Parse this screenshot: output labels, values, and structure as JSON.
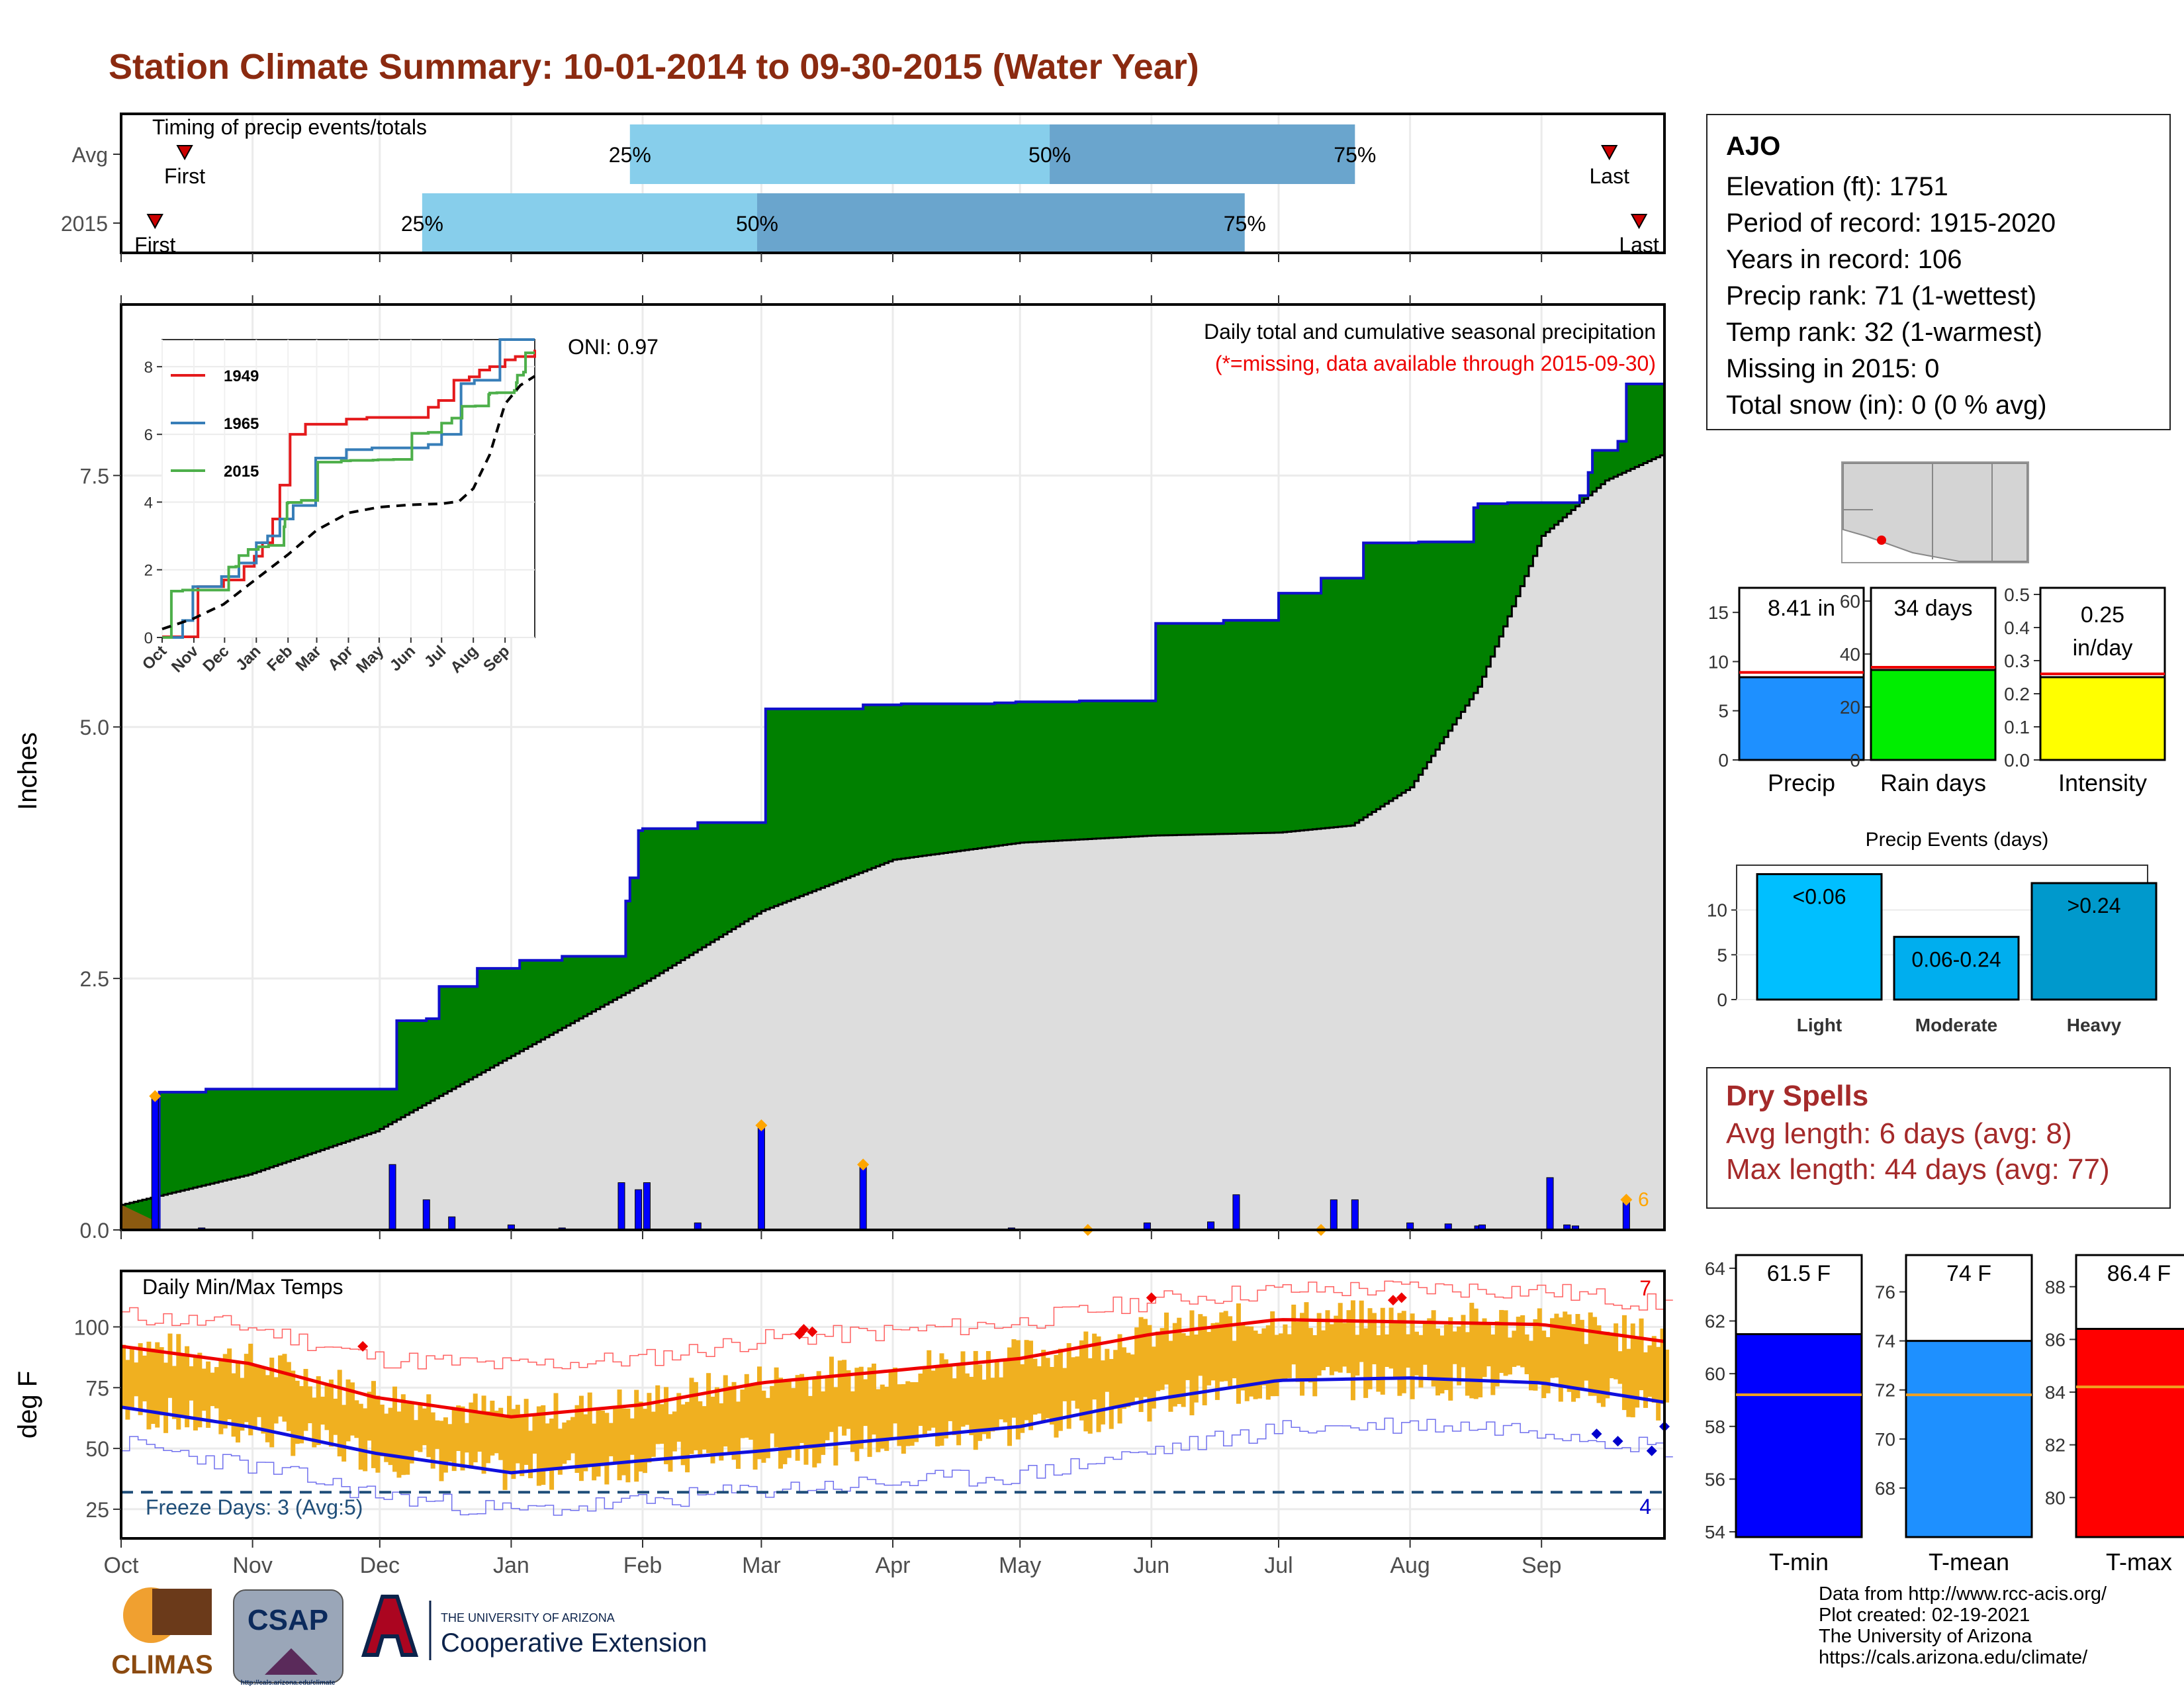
{
  "page": {
    "title": "Station Climate Summary: 10-01-2014 to 09-30-2015 (Water Year)"
  },
  "timing": {
    "title": "Timing of precip events/totals",
    "rows": [
      {
        "label": "Avg",
        "first_label": "First",
        "last_label": "Last",
        "first_day": 15,
        "last_day": 351,
        "p25": 120,
        "p50": 219,
        "p75": 291,
        "p25_label": "25%",
        "p50_label": "50%",
        "p75_label": "75%"
      },
      {
        "label": "2015",
        "first_label": "First",
        "last_label": "Last",
        "first_day": 8,
        "last_day": 358,
        "p25": 71,
        "p50": 150,
        "p75": 265,
        "p25_label": "25%",
        "p50_label": "50%",
        "p75_label": "75%"
      }
    ],
    "colors": {
      "early": "#87ceeb",
      "late": "#6aa5cd",
      "marker": "#cc0000"
    }
  },
  "month_labels": [
    "Oct",
    "Nov",
    "Dec",
    "Jan",
    "Feb",
    "Mar",
    "Apr",
    "May",
    "Jun",
    "Jul",
    "Aug",
    "Sep"
  ],
  "month_starts": [
    0,
    31,
    61,
    92,
    123,
    151,
    182,
    212,
    243,
    273,
    304,
    335
  ],
  "precip_panel": {
    "ylabel": "Inches",
    "title_line1": "Daily total and cumulative seasonal precipitation",
    "title_line2": "(*=missing, data available through 2015-09-30)",
    "oni": "ONI: 0.97",
    "heavy_count_label": "6",
    "colors": {
      "above": "#008000",
      "below": "#dddddd",
      "line": "#1010cc",
      "marker": "#ffa500"
    }
  },
  "chart_data": [
    {
      "type": "area",
      "title": "Daily total and cumulative seasonal precipitation",
      "ylabel": "Inches",
      "ylim": [
        0,
        9.2
      ],
      "yticks": [
        0.0,
        2.5,
        5.0,
        7.5
      ],
      "ytick_labels": [
        "0.0",
        "2.5",
        "5.0",
        "7.5"
      ],
      "x_units": "day of water year (0 = Oct 1)",
      "series": [
        {
          "name": "2015 cumulative",
          "x": [
            0,
            8,
            9,
            20,
            64,
            65,
            72,
            75,
            84,
            94,
            104,
            119,
            120,
            122,
            123,
            136,
            151,
            152,
            175,
            184,
            206,
            211,
            226,
            228,
            244,
            260,
            263,
            273,
            283,
            293,
            306,
            319,
            320,
            327,
            344,
            346,
            347,
            353,
            355,
            364
          ],
          "values": [
            0,
            0,
            1.37,
            1.4,
            1.4,
            2.08,
            2.1,
            2.42,
            2.6,
            2.68,
            2.72,
            3.27,
            3.5,
            3.97,
            3.99,
            4.05,
            4.05,
            5.18,
            5.22,
            5.23,
            5.24,
            5.25,
            5.26,
            5.26,
            6.03,
            6.06,
            6.06,
            6.33,
            6.48,
            6.83,
            6.84,
            7.18,
            7.22,
            7.23,
            7.3,
            7.53,
            7.75,
            7.84,
            8.41,
            8.41
          ]
        },
        {
          "name": "Average cumulative",
          "x": [
            0,
            30,
            60,
            92,
            123,
            151,
            182,
            212,
            243,
            273,
            290,
            304,
            320,
            335,
            350,
            364
          ],
          "values": [
            0.25,
            0.55,
            0.98,
            1.73,
            2.45,
            3.17,
            3.68,
            3.85,
            3.92,
            3.95,
            4.02,
            4.4,
            5.4,
            6.9,
            7.45,
            7.72
          ]
        }
      ],
      "daily": {
        "x": [
          8,
          19,
          64,
          72,
          78,
          92,
          104,
          118,
          122,
          124,
          136,
          151,
          175,
          210,
          230,
          242,
          257,
          263,
          286,
          291,
          304,
          313,
          320,
          321,
          337,
          341,
          343,
          355
        ],
        "values": [
          1.33,
          0.02,
          0.65,
          0.3,
          0.13,
          0.05,
          0.02,
          0.47,
          0.4,
          0.47,
          0.07,
          1.04,
          0.65,
          0.02,
          0.01,
          0.07,
          0.08,
          0.35,
          0.3,
          0.3,
          0.07,
          0.06,
          0.04,
          0.05,
          0.52,
          0.05,
          0.04,
          0.3
        ]
      },
      "markers_x": [
        8,
        151,
        175,
        228,
        283,
        355
      ]
    },
    {
      "type": "line",
      "title": "Daily Min/Max Temps",
      "ylabel": "deg F",
      "ylim": [
        13,
        123
      ],
      "yticks": [
        25,
        50,
        75,
        100
      ],
      "ytick_labels": [
        "25",
        "50",
        "75",
        "100"
      ],
      "series": [
        {
          "name": "Avg max",
          "x": [
            0,
            30,
            60,
            92,
            123,
            151,
            182,
            212,
            243,
            273,
            304,
            335,
            364
          ],
          "values": [
            92,
            85,
            71,
            63,
            68,
            77,
            82,
            87,
            97,
            103,
            102,
            101,
            94
          ]
        },
        {
          "name": "Avg min",
          "x": [
            0,
            30,
            60,
            92,
            123,
            151,
            182,
            212,
            243,
            273,
            304,
            335,
            364
          ],
          "values": [
            67,
            59,
            48,
            40,
            45,
            49,
            54,
            59,
            70,
            78,
            79,
            77,
            69
          ]
        },
        {
          "name": "Record max",
          "x": [
            0,
            30,
            60,
            92,
            123,
            151,
            182,
            212,
            243,
            273,
            304,
            335,
            364
          ],
          "values": [
            105,
            100,
            87,
            84,
            87,
            95,
            98,
            102,
            111,
            115,
            116,
            115,
            109
          ]
        },
        {
          "name": "Record min",
          "x": [
            0,
            30,
            60,
            92,
            123,
            151,
            182,
            212,
            243,
            273,
            304,
            335,
            364
          ],
          "values": [
            52,
            43,
            31,
            24,
            28,
            33,
            36,
            39,
            49,
            58,
            60,
            58,
            50
          ]
        }
      ],
      "freeze_line": 32,
      "freeze_label": "Freeze Days: 3 (Avg:5)",
      "record_high_count": "7",
      "record_low_count": "4"
    }
  ],
  "temp_panel": {
    "title": "Daily Min/Max Temps",
    "ylabel": "deg F",
    "colors": {
      "bars": "#f0b020",
      "max": "#ee0000",
      "min": "#1010dd",
      "freeze": "#1f4e79"
    }
  },
  "inset": {
    "legend": [
      "1949",
      "1965",
      "2015"
    ],
    "legend_colors": [
      "#e41a1c",
      "#377eb8",
      "#4daf4a"
    ],
    "yticks": [
      "0",
      "2",
      "4",
      "6",
      "8"
    ],
    "months": [
      "Oct",
      "Nov",
      "Dec",
      "Jan",
      "Feb",
      "Mar",
      "Apr",
      "May",
      "Jun",
      "Jul",
      "Aug",
      "Sep"
    ]
  },
  "station": {
    "name": "AJO",
    "lines": [
      "Elevation (ft): 1751",
      "Period of record: 1915-2020",
      "Years in record: 106",
      "Precip rank: 71 (1-wettest)",
      "Temp rank: 32 (1-warmest)",
      "Missing in 2015: 0",
      "Total snow (in): 0 (0 % avg)"
    ]
  },
  "summary_bars": [
    {
      "label": "Precip",
      "value_label": "8.41 in",
      "value": 8.41,
      "avg": 8.9,
      "ymax": 17.5,
      "ticks": [
        "0",
        "5",
        "10",
        "15"
      ],
      "tick_values": [
        0,
        5,
        10,
        15
      ],
      "color": "#1e90ff"
    },
    {
      "label": "Rain days",
      "value_label": "34 days",
      "value": 34,
      "avg": 35,
      "ymax": 65,
      "ticks": [
        "0",
        "20",
        "40",
        "60"
      ],
      "tick_values": [
        0,
        20,
        40,
        60
      ],
      "color": "#00ee00"
    },
    {
      "label": "Intensity",
      "value_label": "0.25 in/day",
      "value": 0.25,
      "avg": 0.26,
      "ymax": 0.52,
      "ticks": [
        "0.0",
        "0.1",
        "0.2",
        "0.3",
        "0.4",
        "0.5"
      ],
      "tick_values": [
        0,
        0.1,
        0.2,
        0.3,
        0.4,
        0.5
      ],
      "color": "#ffff00"
    }
  ],
  "precip_events": {
    "title": "Precip Events (days)",
    "categories": [
      "Light",
      "Moderate",
      "Heavy"
    ],
    "bar_labels": [
      "<0.06",
      "0.06-0.24",
      ">0.24"
    ],
    "values": [
      14,
      7,
      13
    ],
    "ymax": 15,
    "ticks": [
      "0",
      "5",
      "10"
    ],
    "colors": [
      "#00bfff",
      "#00aeee",
      "#0099cc"
    ]
  },
  "dry_spells": {
    "title": "Dry Spells",
    "lines": [
      "Avg length: 6 days (avg: 8)",
      "Max length: 44 days (avg: 77)"
    ],
    "color": "#a52a2a"
  },
  "temp_bars": [
    {
      "label": "T-min",
      "value_label": "61.5 F",
      "value": 61.5,
      "avg": 59.2,
      "ymin": 53.8,
      "ymax": 64.5,
      "ticks": [
        "54",
        "56",
        "58",
        "60",
        "62",
        "64"
      ],
      "tick_values": [
        54,
        56,
        58,
        60,
        62,
        64
      ],
      "color": "#0000ff"
    },
    {
      "label": "T-mean",
      "value_label": "74 F",
      "value": 74.0,
      "avg": 71.8,
      "ymin": 66,
      "ymax": 77.5,
      "ticks": [
        "68",
        "70",
        "72",
        "74",
        "76"
      ],
      "tick_values": [
        68,
        70,
        72,
        74,
        76
      ],
      "color": "#1e90ff"
    },
    {
      "label": "T-max",
      "value_label": "86.4 F",
      "value": 86.4,
      "avg": 84.2,
      "ymin": 78.5,
      "ymax": 89.2,
      "ticks": [
        "80",
        "82",
        "84",
        "86",
        "88"
      ],
      "tick_values": [
        80,
        82,
        84,
        86,
        88
      ],
      "color": "#ff0000"
    }
  ],
  "logos": {
    "climas": "CLIMAS",
    "csap": "CSAP",
    "csap_url": "http://cals.arizona.edu/climate",
    "ua_small": "THE UNIVERSITY OF ARIZONA",
    "ua_large": "Cooperative Extension"
  },
  "credits": [
    "Data from http://www.rcc-acis.org/",
    "Plot created: 02-19-2021",
    "The University of Arizona",
    "https://cals.arizona.edu/climate/"
  ]
}
